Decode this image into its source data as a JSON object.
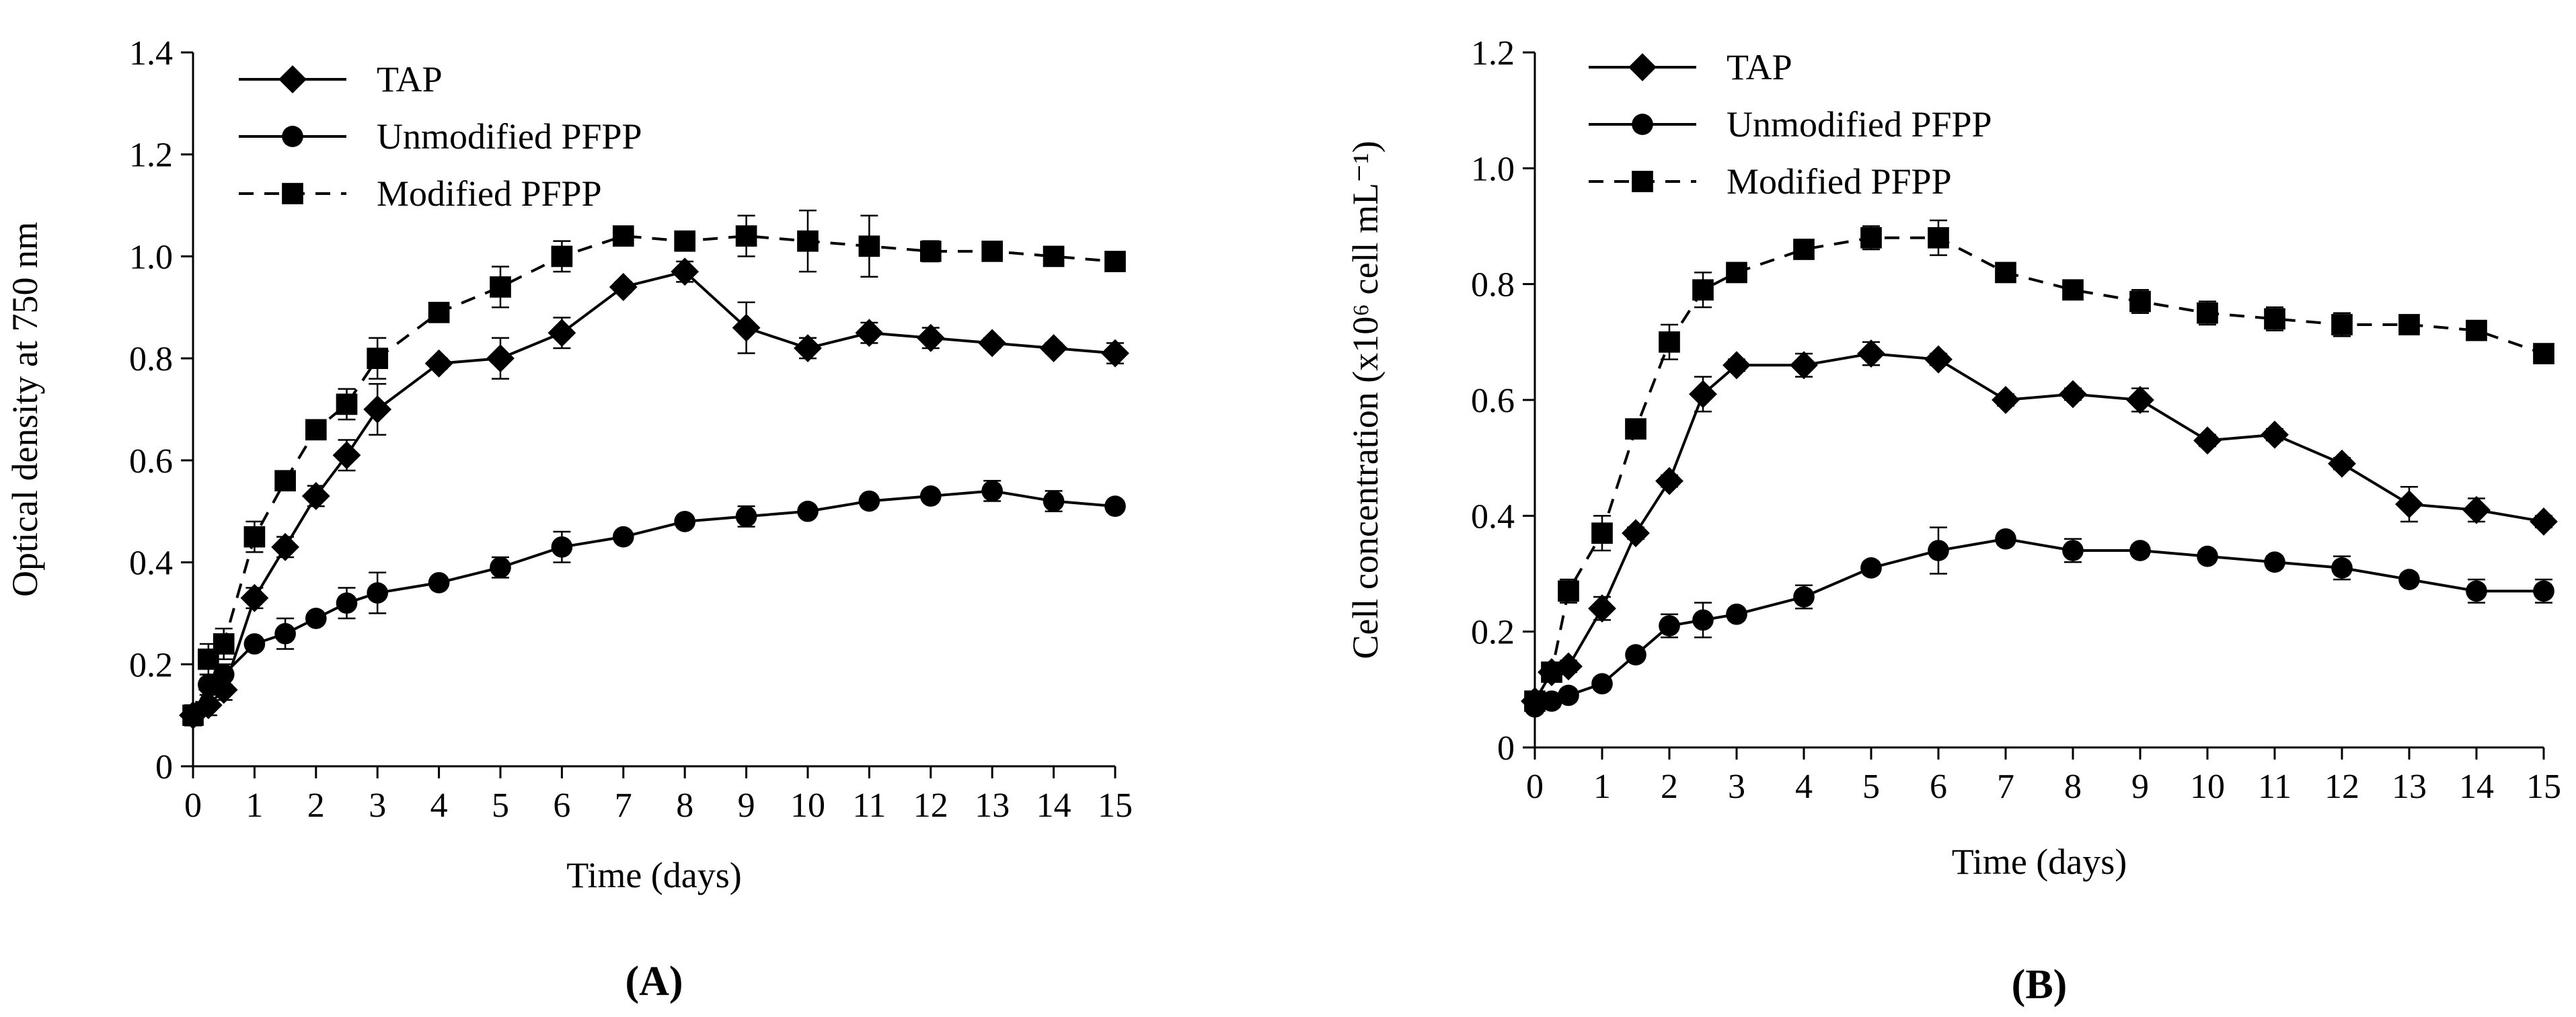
{
  "chart_data": [
    {
      "type": "line",
      "panel_label": "(A)",
      "title": "",
      "xlabel": "Time (days)",
      "ylabel": "Optical density at 750 nm",
      "xlim": [
        0,
        15
      ],
      "ylim": [
        0,
        1.4
      ],
      "x_ticks": [
        "0",
        "1",
        "2",
        "3",
        "4",
        "5",
        "6",
        "7",
        "8",
        "9",
        "10",
        "11",
        "12",
        "13",
        "14",
        "15"
      ],
      "y_ticks": [
        "0",
        "0.2",
        "0.4",
        "0.6",
        "0.8",
        "1.0",
        "1.2",
        "1.4"
      ],
      "grid": false,
      "legend_position": "top-left",
      "series": [
        {
          "name": "TAP",
          "marker": "diamond",
          "line": "solid",
          "x": [
            0,
            0.25,
            0.5,
            1,
            1.5,
            2,
            2.5,
            3,
            4,
            5,
            6,
            7,
            8,
            9,
            10,
            11,
            12,
            13,
            14,
            15
          ],
          "y": [
            0.1,
            0.12,
            0.15,
            0.33,
            0.43,
            0.53,
            0.61,
            0.7,
            0.79,
            0.8,
            0.85,
            0.94,
            0.97,
            0.86,
            0.82,
            0.85,
            0.84,
            0.83,
            0.82,
            0.81
          ],
          "err": [
            0.02,
            0.02,
            0.02,
            0.02,
            0.02,
            0.02,
            0.03,
            0.05,
            0.01,
            0.04,
            0.03,
            0.01,
            0.02,
            0.05,
            0.02,
            0.02,
            0.02,
            0.01,
            0.01,
            0.02
          ]
        },
        {
          "name": "Unmodified PFPP",
          "marker": "circle",
          "line": "solid",
          "x": [
            0,
            0.25,
            0.5,
            1,
            1.5,
            2,
            2.5,
            3,
            4,
            5,
            6,
            7,
            8,
            9,
            10,
            11,
            12,
            13,
            14,
            15
          ],
          "y": [
            0.1,
            0.16,
            0.18,
            0.24,
            0.26,
            0.29,
            0.32,
            0.34,
            0.36,
            0.39,
            0.43,
            0.45,
            0.48,
            0.49,
            0.5,
            0.52,
            0.53,
            0.54,
            0.52,
            0.51
          ],
          "err": [
            0.01,
            0.02,
            0.02,
            0.01,
            0.03,
            0.01,
            0.03,
            0.04,
            0.01,
            0.02,
            0.03,
            0.01,
            0.01,
            0.02,
            0.01,
            0.01,
            0.01,
            0.02,
            0.02,
            0.01
          ]
        },
        {
          "name": "Modified PFPP",
          "marker": "square",
          "line": "dashed",
          "x": [
            0,
            0.25,
            0.5,
            1,
            1.5,
            2,
            2.5,
            3,
            4,
            5,
            6,
            7,
            8,
            9,
            10,
            11,
            12,
            13,
            14,
            15
          ],
          "y": [
            0.1,
            0.21,
            0.24,
            0.45,
            0.56,
            0.66,
            0.71,
            0.8,
            0.89,
            0.94,
            1.0,
            1.04,
            1.03,
            1.04,
            1.03,
            1.02,
            1.01,
            1.01,
            1.0,
            0.99
          ],
          "err": [
            0.01,
            0.03,
            0.03,
            0.03,
            0.01,
            0.01,
            0.03,
            0.04,
            0.01,
            0.04,
            0.03,
            0.01,
            0.01,
            0.04,
            0.06,
            0.06,
            0.02,
            0.01,
            0.01,
            0.01
          ]
        }
      ]
    },
    {
      "type": "line",
      "panel_label": "(B)",
      "title": "",
      "xlabel": "Time (days)",
      "ylabel": "Cell concentration (x10⁶ cell mL⁻¹)",
      "xlim": [
        0,
        15
      ],
      "ylim": [
        0,
        1.2
      ],
      "x_ticks": [
        "0",
        "1",
        "2",
        "3",
        "4",
        "5",
        "6",
        "7",
        "8",
        "9",
        "10",
        "11",
        "12",
        "13",
        "14",
        "15"
      ],
      "y_ticks": [
        "0",
        "0.2",
        "0.4",
        "0.6",
        "0.8",
        "1.0",
        "1.2"
      ],
      "grid": false,
      "legend_position": "top-left",
      "series": [
        {
          "name": "TAP",
          "marker": "diamond",
          "line": "solid",
          "x": [
            0,
            0.25,
            0.5,
            1,
            1.5,
            2,
            2.5,
            3,
            4,
            5,
            6,
            7,
            8,
            9,
            10,
            11,
            12,
            13,
            14,
            15
          ],
          "y": [
            0.08,
            0.13,
            0.14,
            0.24,
            0.37,
            0.46,
            0.61,
            0.66,
            0.66,
            0.68,
            0.67,
            0.6,
            0.61,
            0.6,
            0.53,
            0.54,
            0.49,
            0.42,
            0.41,
            0.39
          ],
          "err": [
            0.01,
            0.01,
            0.01,
            0.02,
            0.01,
            0.01,
            0.03,
            0.01,
            0.02,
            0.02,
            0.01,
            0.01,
            0.01,
            0.02,
            0.01,
            0.01,
            0.01,
            0.03,
            0.02,
            0.01
          ]
        },
        {
          "name": "Unmodified PFPP",
          "marker": "circle",
          "line": "solid",
          "x": [
            0,
            0.25,
            0.5,
            1,
            1.5,
            2,
            2.5,
            3,
            4,
            5,
            6,
            7,
            8,
            9,
            10,
            11,
            12,
            13,
            14,
            15
          ],
          "y": [
            0.07,
            0.08,
            0.09,
            0.11,
            0.16,
            0.21,
            0.22,
            0.23,
            0.26,
            0.31,
            0.34,
            0.36,
            0.34,
            0.34,
            0.33,
            0.32,
            0.31,
            0.29,
            0.27,
            0.27
          ],
          "err": [
            0.01,
            0.01,
            0.01,
            0.01,
            0.01,
            0.02,
            0.03,
            0.01,
            0.02,
            0.01,
            0.04,
            0.01,
            0.02,
            0.01,
            0.01,
            0.01,
            0.02,
            0.01,
            0.02,
            0.02
          ]
        },
        {
          "name": "Modified PFPP",
          "marker": "square",
          "line": "dashed",
          "x": [
            0,
            0.25,
            0.5,
            1,
            1.5,
            2,
            2.5,
            3,
            4,
            5,
            6,
            7,
            8,
            9,
            10,
            11,
            12,
            13,
            14,
            15
          ],
          "y": [
            0.08,
            0.13,
            0.27,
            0.37,
            0.55,
            0.7,
            0.79,
            0.82,
            0.86,
            0.88,
            0.88,
            0.82,
            0.79,
            0.77,
            0.75,
            0.74,
            0.73,
            0.73,
            0.72,
            0.68
          ],
          "err": [
            0.01,
            0.01,
            0.02,
            0.03,
            0.01,
            0.03,
            0.03,
            0.01,
            0.01,
            0.02,
            0.03,
            0.01,
            0.01,
            0.02,
            0.02,
            0.02,
            0.02,
            0.01,
            0.01,
            0.01
          ]
        }
      ]
    }
  ]
}
